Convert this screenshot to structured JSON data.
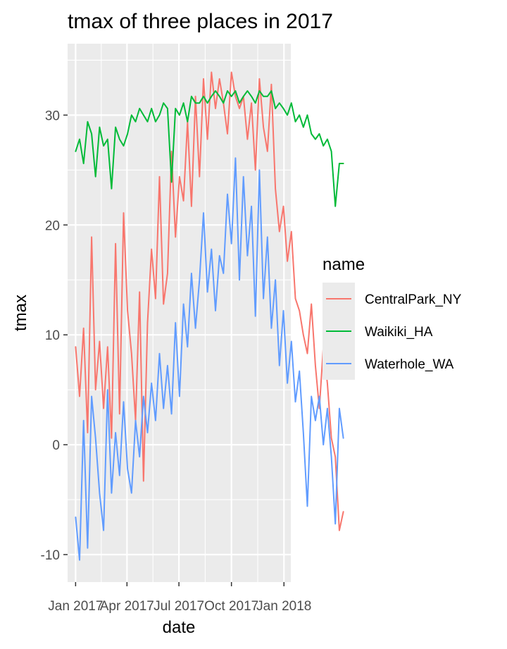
{
  "chart_data": {
    "type": "line",
    "title": "tmax of three places in 2017",
    "xlabel": "date",
    "ylabel": "tmax",
    "x_tick_labels": [
      "Jan 2017",
      "Apr 2017",
      "Jul 2017",
      "Oct 2017",
      "Jan 2018"
    ],
    "y_tick_labels": [
      "-10",
      "0",
      "10",
      "20",
      "30"
    ],
    "y_ticks": [
      -10,
      0,
      10,
      20,
      30
    ],
    "ylim": [
      -12.5,
      36.5
    ],
    "xlim": [
      "2016-12-18",
      "2018-01-13"
    ],
    "grid": true,
    "legend": {
      "title": "name",
      "position": "right"
    },
    "sample_interval_days": 7,
    "series": [
      {
        "name": "CentralPark_NY",
        "color": "#F8766D",
        "start": "2017-01-01",
        "values": [
          8.9,
          4.4,
          10.6,
          1.1,
          18.9,
          5.0,
          9.4,
          3.3,
          8.9,
          0.6,
          18.3,
          2.8,
          21.1,
          12.2,
          8.3,
          2.2,
          13.9,
          -3.3,
          11.1,
          17.8,
          13.3,
          24.4,
          12.8,
          15.6,
          26.7,
          18.9,
          24.4,
          22.2,
          29.4,
          21.7,
          31.7,
          24.4,
          33.3,
          27.8,
          33.9,
          30.6,
          33.3,
          31.1,
          28.3,
          33.9,
          31.7,
          30.6,
          31.7,
          27.8,
          31.1,
          25.0,
          33.3,
          28.9,
          26.7,
          32.8,
          23.3,
          19.4,
          21.7,
          16.7,
          19.4,
          13.3,
          12.2,
          10.0,
          8.3,
          12.8,
          7.2,
          3.3,
          8.9,
          5.6,
          0.6,
          -1.1,
          -7.8,
          -6.1
        ]
      },
      {
        "name": "Waikiki_HA",
        "color": "#00BA38",
        "start": "2017-01-01",
        "values": [
          26.7,
          27.8,
          25.6,
          29.4,
          28.3,
          24.4,
          28.9,
          27.2,
          27.8,
          23.3,
          28.9,
          27.8,
          27.2,
          28.3,
          30.0,
          29.4,
          30.6,
          30.0,
          29.4,
          30.6,
          29.4,
          30.0,
          31.1,
          30.6,
          23.9,
          30.6,
          30.0,
          31.1,
          29.4,
          31.7,
          31.1,
          31.1,
          31.7,
          31.1,
          31.7,
          32.2,
          31.7,
          31.1,
          32.2,
          31.7,
          32.2,
          31.1,
          31.7,
          32.2,
          31.7,
          31.1,
          32.2,
          31.7,
          31.7,
          32.2,
          30.6,
          31.1,
          30.6,
          30.0,
          31.1,
          29.4,
          30.0,
          28.9,
          30.0,
          28.3,
          27.8,
          28.3,
          27.2,
          27.8,
          26.7,
          21.7,
          25.6,
          25.6
        ]
      },
      {
        "name": "Waterhole_WA",
        "color": "#619CFF",
        "start": "2017-01-01",
        "values": [
          -6.6,
          -10.5,
          2.2,
          -9.4,
          4.4,
          0.6,
          -4.4,
          -7.8,
          5.0,
          -4.4,
          1.1,
          -2.8,
          3.9,
          -2.2,
          -4.4,
          2.2,
          -1.1,
          4.4,
          1.1,
          5.6,
          2.2,
          8.3,
          3.3,
          7.2,
          2.8,
          11.1,
          4.4,
          12.8,
          8.9,
          15.6,
          10.6,
          15.0,
          21.1,
          13.9,
          17.8,
          12.2,
          17.2,
          15.6,
          22.8,
          18.3,
          26.1,
          15.0,
          24.4,
          17.2,
          21.7,
          11.7,
          25.0,
          13.3,
          18.9,
          10.6,
          15.0,
          7.2,
          12.2,
          5.6,
          9.4,
          3.9,
          6.7,
          1.1,
          -5.6,
          4.4,
          2.2,
          4.4,
          0.0,
          3.3,
          -1.1,
          -7.2,
          3.3,
          0.6
        ]
      }
    ]
  }
}
